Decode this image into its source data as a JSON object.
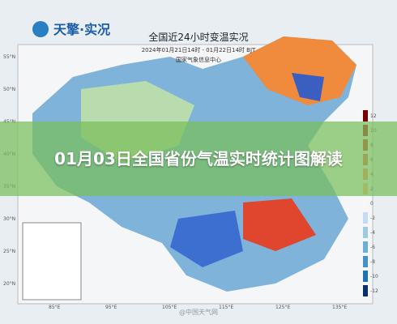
{
  "logo": "天擎·实况",
  "map": {
    "title": "全国近24小时变温实况",
    "subtitle": "2024年01月21日14时 - 01月22日14时 BJT",
    "source": "国家气象信息中心",
    "lat_labels": [
      "55°N",
      "50°N",
      "45°N",
      "40°N",
      "35°N",
      "30°N",
      "25°N",
      "20°N"
    ],
    "lon_labels": [
      "85°E",
      "95°E",
      "105°E",
      "115°E",
      "125°E",
      "135°E"
    ],
    "legend": [
      "12",
      "10",
      "8",
      "6",
      "4",
      "2",
      "0",
      "-2",
      "-4",
      "-6",
      "-8",
      "-10",
      "-12"
    ],
    "watermark": "@中国天气网"
  },
  "overlay": {
    "title": "01月03日全国省份气温实时统计图解读"
  }
}
